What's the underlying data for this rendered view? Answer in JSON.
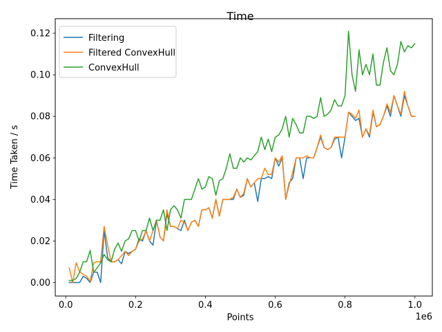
{
  "chart_data": {
    "type": "line",
    "title": "Time",
    "xlabel": "Points",
    "ylabel": "Time Taken / s",
    "x_offset_label": "1e6",
    "xlim": [
      -0.03,
      1.05
    ],
    "ylim": [
      -0.0065,
      0.127
    ],
    "x_ticks": [
      0,
      0.2,
      0.4,
      0.6,
      0.8,
      1.0
    ],
    "x_tick_labels": [
      "0.0",
      "0.2",
      "0.4",
      "0.6",
      "0.8",
      "1.0"
    ],
    "y_ticks": [
      0,
      0.02,
      0.04,
      0.06,
      0.08,
      0.1,
      0.12
    ],
    "y_tick_labels": [
      "0.00",
      "0.02",
      "0.04",
      "0.06",
      "0.08",
      "0.10",
      "0.12"
    ],
    "grid": false,
    "legend_position": "upper-left",
    "x": [
      0.01,
      0.02,
      0.03,
      0.04,
      0.05,
      0.06,
      0.07,
      0.08,
      0.09,
      0.1,
      0.11,
      0.12,
      0.13,
      0.14,
      0.15,
      0.16,
      0.17,
      0.18,
      0.19,
      0.2,
      0.21,
      0.22,
      0.23,
      0.24,
      0.25,
      0.26,
      0.27,
      0.28,
      0.29,
      0.3,
      0.31,
      0.32,
      0.33,
      0.34,
      0.35,
      0.36,
      0.37,
      0.38,
      0.39,
      0.4,
      0.41,
      0.42,
      0.43,
      0.44,
      0.45,
      0.46,
      0.47,
      0.48,
      0.49,
      0.5,
      0.51,
      0.52,
      0.53,
      0.54,
      0.55,
      0.56,
      0.57,
      0.58,
      0.59,
      0.6,
      0.61,
      0.62,
      0.63,
      0.64,
      0.65,
      0.66,
      0.67,
      0.68,
      0.69,
      0.7,
      0.71,
      0.72,
      0.73,
      0.74,
      0.75,
      0.76,
      0.77,
      0.78,
      0.79,
      0.8,
      0.81,
      0.82,
      0.83,
      0.84,
      0.85,
      0.86,
      0.87,
      0.88,
      0.89,
      0.9,
      0.91,
      0.92,
      0.93,
      0.94,
      0.95,
      0.96,
      0.97,
      0.98,
      0.99,
      1.0
    ],
    "series": [
      {
        "name": "Filtering",
        "color": "#1f77b4",
        "values": [
          0.0,
          0.0,
          0.0,
          0.0,
          0.003,
          0.002,
          0.0,
          0.005,
          0.005,
          0.0,
          0.025,
          0.012,
          0.01,
          0.01,
          0.011,
          0.009,
          0.015,
          0.014,
          0.015,
          0.016,
          0.021,
          0.02,
          0.025,
          0.02,
          0.018,
          0.03,
          0.022,
          0.02,
          0.033,
          0.027,
          0.027,
          0.026,
          0.025,
          0.03,
          0.025,
          0.029,
          0.03,
          0.027,
          0.035,
          0.035,
          0.036,
          0.031,
          0.04,
          0.032,
          0.04,
          0.04,
          0.04,
          0.04,
          0.045,
          0.041,
          0.042,
          0.05,
          0.046,
          0.048,
          0.039,
          0.05,
          0.05,
          0.051,
          0.05,
          0.06,
          0.056,
          0.06,
          0.04,
          0.048,
          0.05,
          0.06,
          0.06,
          0.05,
          0.06,
          0.06,
          0.06,
          0.065,
          0.07,
          0.065,
          0.064,
          0.065,
          0.069,
          0.07,
          0.06,
          0.07,
          0.082,
          0.08,
          0.078,
          0.079,
          0.07,
          0.074,
          0.07,
          0.082,
          0.075,
          0.076,
          0.08,
          0.085,
          0.08,
          0.09,
          0.085,
          0.08,
          0.09,
          0.085,
          0.08,
          0.08
        ]
      },
      {
        "name": "Filtered ConvexHull",
        "color": "#ff7f0e",
        "values": [
          0.007,
          0.0,
          0.0095,
          0.005,
          0.004,
          0.003,
          0.0005,
          0.0095,
          0.01,
          0.01,
          0.027,
          0.018,
          0.01,
          0.01,
          0.011,
          0.013,
          0.015,
          0.013,
          0.015,
          0.016,
          0.02,
          0.021,
          0.025,
          0.02,
          0.025,
          0.03,
          0.022,
          0.02,
          0.035,
          0.027,
          0.027,
          0.026,
          0.03,
          0.029,
          0.025,
          0.029,
          0.03,
          0.027,
          0.035,
          0.035,
          0.036,
          0.031,
          0.04,
          0.032,
          0.04,
          0.04,
          0.04,
          0.041,
          0.045,
          0.041,
          0.043,
          0.05,
          0.046,
          0.048,
          0.05,
          0.05,
          0.055,
          0.052,
          0.052,
          0.06,
          0.058,
          0.061,
          0.04,
          0.047,
          0.053,
          0.06,
          0.06,
          0.06,
          0.061,
          0.06,
          0.06,
          0.065,
          0.071,
          0.065,
          0.064,
          0.065,
          0.07,
          0.07,
          0.07,
          0.07,
          0.082,
          0.081,
          0.079,
          0.083,
          0.07,
          0.074,
          0.071,
          0.083,
          0.075,
          0.076,
          0.08,
          0.086,
          0.082,
          0.09,
          0.085,
          0.081,
          0.092,
          0.085,
          0.08,
          0.08
        ]
      },
      {
        "name": "ConvexHull",
        "color": "#2ca02c",
        "values": [
          0.001,
          0.001,
          0.002,
          0.005,
          0.01,
          0.01,
          0.0155,
          0.005,
          0.007,
          0.0095,
          0.0135,
          0.011,
          0.01,
          0.016,
          0.019,
          0.015,
          0.02,
          0.021,
          0.025,
          0.025,
          0.02,
          0.025,
          0.025,
          0.031,
          0.025,
          0.03,
          0.03,
          0.035,
          0.025,
          0.035,
          0.037,
          0.035,
          0.031,
          0.04,
          0.04,
          0.04,
          0.045,
          0.05,
          0.045,
          0.046,
          0.051,
          0.05,
          0.042,
          0.049,
          0.05,
          0.055,
          0.062,
          0.055,
          0.055,
          0.06,
          0.058,
          0.06,
          0.059,
          0.061,
          0.063,
          0.07,
          0.064,
          0.069,
          0.063,
          0.07,
          0.071,
          0.074,
          0.08,
          0.07,
          0.079,
          0.076,
          0.072,
          0.072,
          0.08,
          0.08,
          0.079,
          0.08,
          0.089,
          0.08,
          0.081,
          0.083,
          0.088,
          0.085,
          0.085,
          0.09,
          0.121,
          0.1,
          0.092,
          0.112,
          0.1,
          0.105,
          0.1,
          0.11,
          0.095,
          0.095,
          0.106,
          0.113,
          0.102,
          0.1,
          0.105,
          0.116,
          0.111,
          0.114,
          0.113,
          0.115
        ]
      }
    ]
  }
}
